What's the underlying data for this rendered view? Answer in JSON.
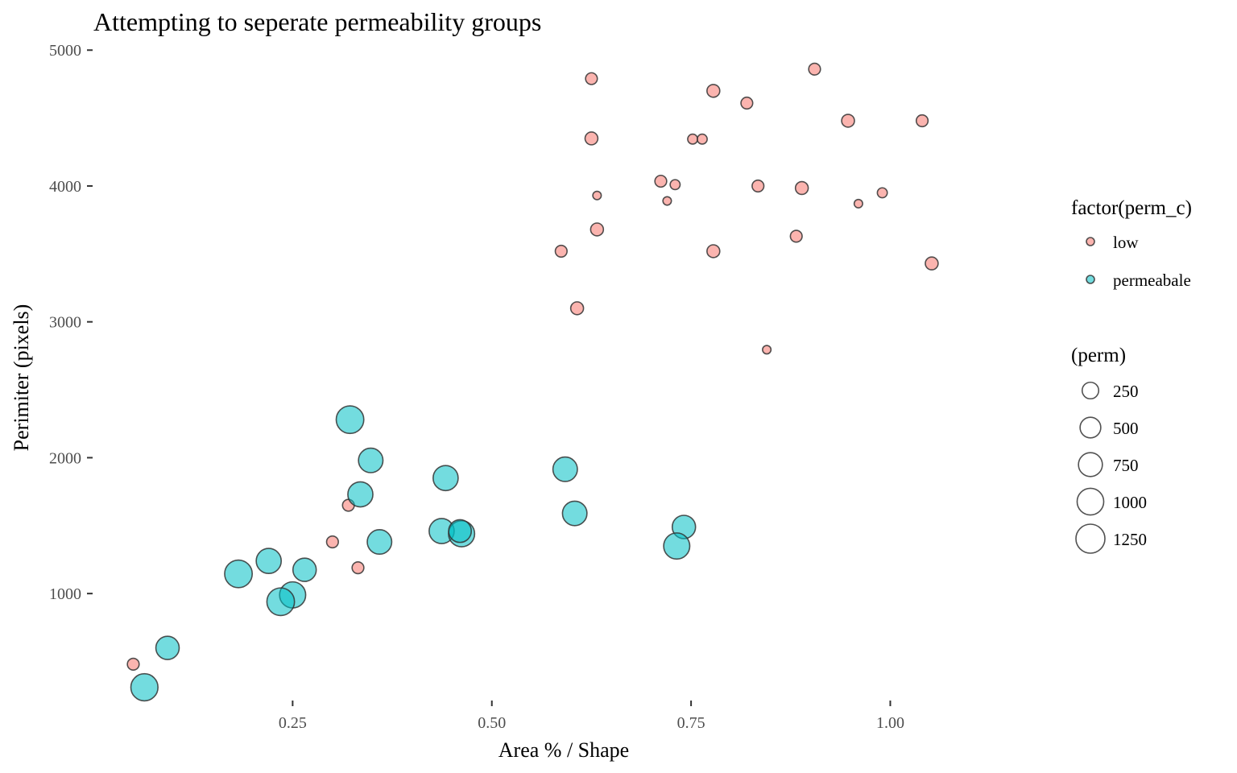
{
  "chart_data": {
    "type": "scatter",
    "title": "Attempting to seperate permeability groups",
    "xlabel": "Area % / Shape",
    "ylabel": "Perimiter (pixels)",
    "xlim": [
      0.0,
      1.14
    ],
    "ylim": [
      260,
      5120
    ],
    "x_ticks": [
      0.25,
      0.5,
      0.75,
      1.0
    ],
    "x_tick_labels": [
      "0.25",
      "0.50",
      "0.75",
      "1.00"
    ],
    "y_ticks": [
      1000,
      2000,
      3000,
      4000,
      5000
    ],
    "y_tick_labels": [
      "1000",
      "2000",
      "3000",
      "4000",
      "5000"
    ],
    "grid": false,
    "colors": {
      "low": "#F8766D",
      "permeabale": "#00BFC4",
      "stroke": "#333333"
    },
    "color_legend": {
      "title": "factor(perm_c)",
      "placement": "right",
      "entries": [
        {
          "label": "low",
          "key": "low"
        },
        {
          "label": "permeabale",
          "key": "permeabale"
        }
      ]
    },
    "size_legend": {
      "title": "(perm)",
      "placement": "right",
      "entries": [
        {
          "label": "250",
          "value": 250
        },
        {
          "label": "500",
          "value": 500
        },
        {
          "label": "750",
          "value": 750
        },
        {
          "label": "1000",
          "value": 1000
        },
        {
          "label": "1250",
          "value": 1250
        }
      ]
    },
    "series": [
      {
        "name": "low",
        "points": [
          {
            "x": 0.905,
            "y": 4860,
            "perm": 70
          },
          {
            "x": 0.625,
            "y": 4790,
            "perm": 70
          },
          {
            "x": 0.778,
            "y": 4700,
            "perm": 100
          },
          {
            "x": 0.82,
            "y": 4610,
            "perm": 70
          },
          {
            "x": 0.947,
            "y": 4480,
            "perm": 100
          },
          {
            "x": 1.04,
            "y": 4480,
            "perm": 70
          },
          {
            "x": 0.625,
            "y": 4350,
            "perm": 100
          },
          {
            "x": 0.752,
            "y": 4345,
            "perm": 30
          },
          {
            "x": 0.764,
            "y": 4345,
            "perm": 30
          },
          {
            "x": 0.712,
            "y": 4035,
            "perm": 70
          },
          {
            "x": 0.73,
            "y": 4010,
            "perm": 30
          },
          {
            "x": 0.834,
            "y": 4000,
            "perm": 70
          },
          {
            "x": 0.889,
            "y": 3985,
            "perm": 100
          },
          {
            "x": 0.99,
            "y": 3950,
            "perm": 30
          },
          {
            "x": 0.632,
            "y": 3930,
            "perm": 10
          },
          {
            "x": 0.72,
            "y": 3890,
            "perm": 10
          },
          {
            "x": 0.96,
            "y": 3870,
            "perm": 10
          },
          {
            "x": 0.632,
            "y": 3680,
            "perm": 100
          },
          {
            "x": 0.882,
            "y": 3630,
            "perm": 70
          },
          {
            "x": 0.587,
            "y": 3520,
            "perm": 70
          },
          {
            "x": 0.778,
            "y": 3520,
            "perm": 100
          },
          {
            "x": 1.052,
            "y": 3430,
            "perm": 100
          },
          {
            "x": 0.607,
            "y": 3100,
            "perm": 100
          },
          {
            "x": 0.845,
            "y": 2795,
            "perm": 10
          },
          {
            "x": 0.32,
            "y": 1650,
            "perm": 70
          },
          {
            "x": 0.3,
            "y": 1380,
            "perm": 70
          },
          {
            "x": 0.332,
            "y": 1190,
            "perm": 70
          },
          {
            "x": 0.05,
            "y": 480,
            "perm": 70
          }
        ]
      },
      {
        "name": "permeabale",
        "points": [
          {
            "x": 0.322,
            "y": 2280,
            "perm": 1100
          },
          {
            "x": 0.348,
            "y": 1980,
            "perm": 800
          },
          {
            "x": 0.592,
            "y": 1915,
            "perm": 800
          },
          {
            "x": 0.442,
            "y": 1850,
            "perm": 850
          },
          {
            "x": 0.335,
            "y": 1730,
            "perm": 850
          },
          {
            "x": 0.604,
            "y": 1590,
            "perm": 800
          },
          {
            "x": 0.741,
            "y": 1490,
            "perm": 700
          },
          {
            "x": 0.437,
            "y": 1460,
            "perm": 850
          },
          {
            "x": 0.462,
            "y": 1440,
            "perm": 950
          },
          {
            "x": 0.46,
            "y": 1460,
            "perm": 650
          },
          {
            "x": 0.359,
            "y": 1380,
            "perm": 800
          },
          {
            "x": 0.732,
            "y": 1350,
            "perm": 950
          },
          {
            "x": 0.22,
            "y": 1240,
            "perm": 850
          },
          {
            "x": 0.265,
            "y": 1175,
            "perm": 700
          },
          {
            "x": 0.182,
            "y": 1145,
            "perm": 1100
          },
          {
            "x": 0.25,
            "y": 990,
            "perm": 950
          },
          {
            "x": 0.235,
            "y": 940,
            "perm": 1100
          },
          {
            "x": 0.093,
            "y": 600,
            "perm": 700
          },
          {
            "x": 0.064,
            "y": 310,
            "perm": 1050
          }
        ]
      }
    ]
  }
}
